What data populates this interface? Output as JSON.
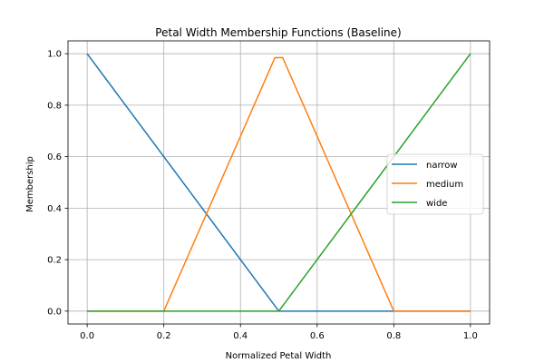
{
  "chart_data": {
    "type": "line",
    "title": "Petal Width Membership Functions (Baseline)",
    "xlabel": "Normalized Petal Width",
    "ylabel": "Membership",
    "xlim": [
      -0.05,
      1.05
    ],
    "ylim": [
      -0.05,
      1.05
    ],
    "xticks": [
      0.0,
      0.2,
      0.4,
      0.6,
      0.8,
      1.0
    ],
    "xtick_labels": [
      "0.0",
      "0.2",
      "0.4",
      "0.6",
      "0.8",
      "1.0"
    ],
    "yticks": [
      0.0,
      0.2,
      0.4,
      0.6,
      0.8,
      1.0
    ],
    "ytick_labels": [
      "0.0",
      "0.2",
      "0.4",
      "0.6",
      "0.8",
      "1.0"
    ],
    "grid": true,
    "legend_position": "center-right",
    "series": [
      {
        "name": "narrow",
        "color": "#1f77b4",
        "x": [
          0.0,
          0.5,
          1.0
        ],
        "y": [
          1.0,
          0.0,
          0.0
        ]
      },
      {
        "name": "medium",
        "color": "#ff7f0e",
        "x": [
          0.0,
          0.2,
          0.49,
          0.51,
          0.8,
          1.0
        ],
        "y": [
          0.0,
          0.0,
          0.985,
          0.985,
          0.0,
          0.0
        ]
      },
      {
        "name": "wide",
        "color": "#2ca02c",
        "x": [
          0.0,
          0.5,
          1.0
        ],
        "y": [
          0.0,
          0.0,
          1.0
        ]
      }
    ]
  }
}
